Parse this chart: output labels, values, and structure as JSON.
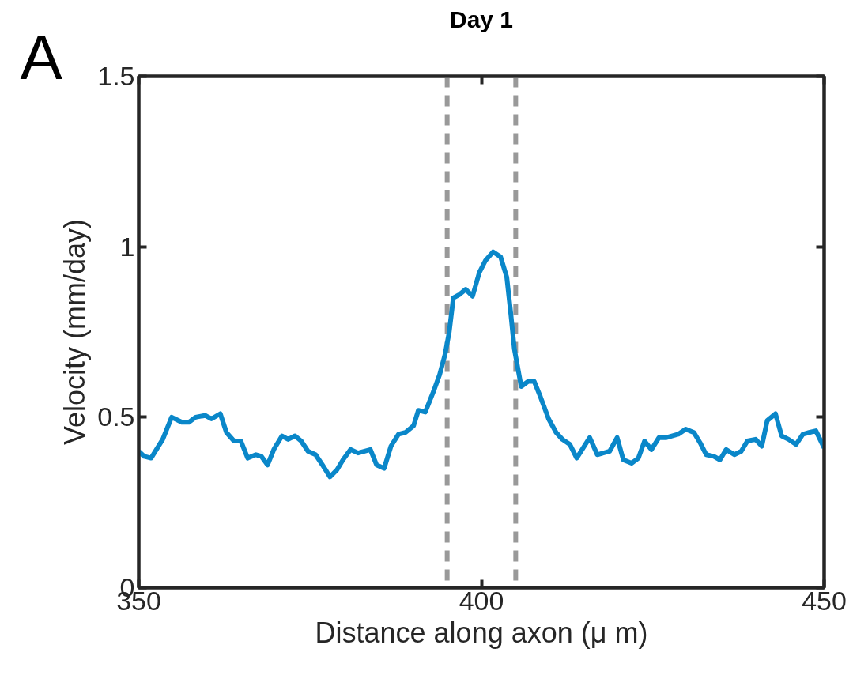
{
  "chart_data": {
    "type": "line",
    "title": "Day 1",
    "xlabel": "Distance along axon (μ m)",
    "ylabel": "Velocity (mm/day)",
    "annotations": [
      "A"
    ],
    "xlim": [
      350,
      450
    ],
    "xticks": [
      350,
      400,
      450
    ],
    "ylim": [
      0,
      1.5
    ],
    "yticks": [
      0,
      0.5,
      1,
      1.5
    ],
    "grid": false,
    "marker": "none",
    "line_style": "solid",
    "series": [
      {
        "color": "#0a87c9",
        "x": [
          350,
          350.8,
          351.8,
          353.5,
          354.8,
          356.3,
          357.3,
          358.3,
          359.7,
          360.6,
          361.9,
          362.8,
          363.9,
          364.9,
          365.9,
          367.1,
          367.9,
          368.8,
          369.7,
          370.9,
          371.8,
          372.8,
          373.7,
          374.7,
          375.8,
          376.8,
          377.9,
          378.9,
          379.8,
          380.9,
          382.0,
          383.8,
          384.7,
          385.8,
          386.8,
          387.9,
          388.9,
          390.1,
          390.8,
          391.8,
          393.0,
          393.9,
          394.7,
          395.3,
          395.9,
          396.8,
          397.7,
          398.7,
          399.7,
          400.6,
          401.7,
          402.8,
          403.7,
          404.3,
          404.8,
          405.8,
          406.8,
          407.7,
          408.6,
          409.8,
          410.9,
          411.8,
          412.9,
          413.9,
          415.8,
          416.9,
          418.7,
          419.8,
          420.7,
          421.9,
          422.9,
          423.8,
          424.8,
          425.9,
          427.0,
          428.7,
          429.8,
          431.0,
          431.9,
          432.8,
          433.9,
          434.8,
          435.7,
          436.9,
          437.9,
          438.8,
          440.0,
          440.9,
          441.7,
          442.9,
          443.8,
          444.8,
          445.9,
          446.9,
          447.8,
          448.8,
          450
        ],
        "values": [
          0.4,
          0.385,
          0.38,
          0.435,
          0.5,
          0.485,
          0.485,
          0.5,
          0.505,
          0.495,
          0.51,
          0.455,
          0.43,
          0.43,
          0.38,
          0.39,
          0.385,
          0.36,
          0.405,
          0.445,
          0.435,
          0.445,
          0.43,
          0.4,
          0.39,
          0.36,
          0.325,
          0.345,
          0.375,
          0.405,
          0.395,
          0.405,
          0.36,
          0.35,
          0.415,
          0.45,
          0.455,
          0.475,
          0.52,
          0.515,
          0.575,
          0.625,
          0.685,
          0.75,
          0.85,
          0.86,
          0.875,
          0.855,
          0.925,
          0.96,
          0.985,
          0.97,
          0.91,
          0.8,
          0.7,
          0.59,
          0.605,
          0.605,
          0.56,
          0.495,
          0.455,
          0.435,
          0.42,
          0.38,
          0.44,
          0.39,
          0.4,
          0.44,
          0.375,
          0.365,
          0.38,
          0.43,
          0.405,
          0.44,
          0.44,
          0.45,
          0.465,
          0.455,
          0.425,
          0.39,
          0.385,
          0.375,
          0.405,
          0.39,
          0.4,
          0.43,
          0.435,
          0.415,
          0.49,
          0.51,
          0.445,
          0.435,
          0.42,
          0.45,
          0.455,
          0.46,
          0.41
        ]
      }
    ],
    "ref_lines": [
      {
        "axis": "x",
        "value": 395,
        "color": "#999999",
        "line_style": "dashed"
      },
      {
        "axis": "x",
        "value": 405,
        "color": "#999999",
        "line_style": "dashed"
      }
    ]
  }
}
